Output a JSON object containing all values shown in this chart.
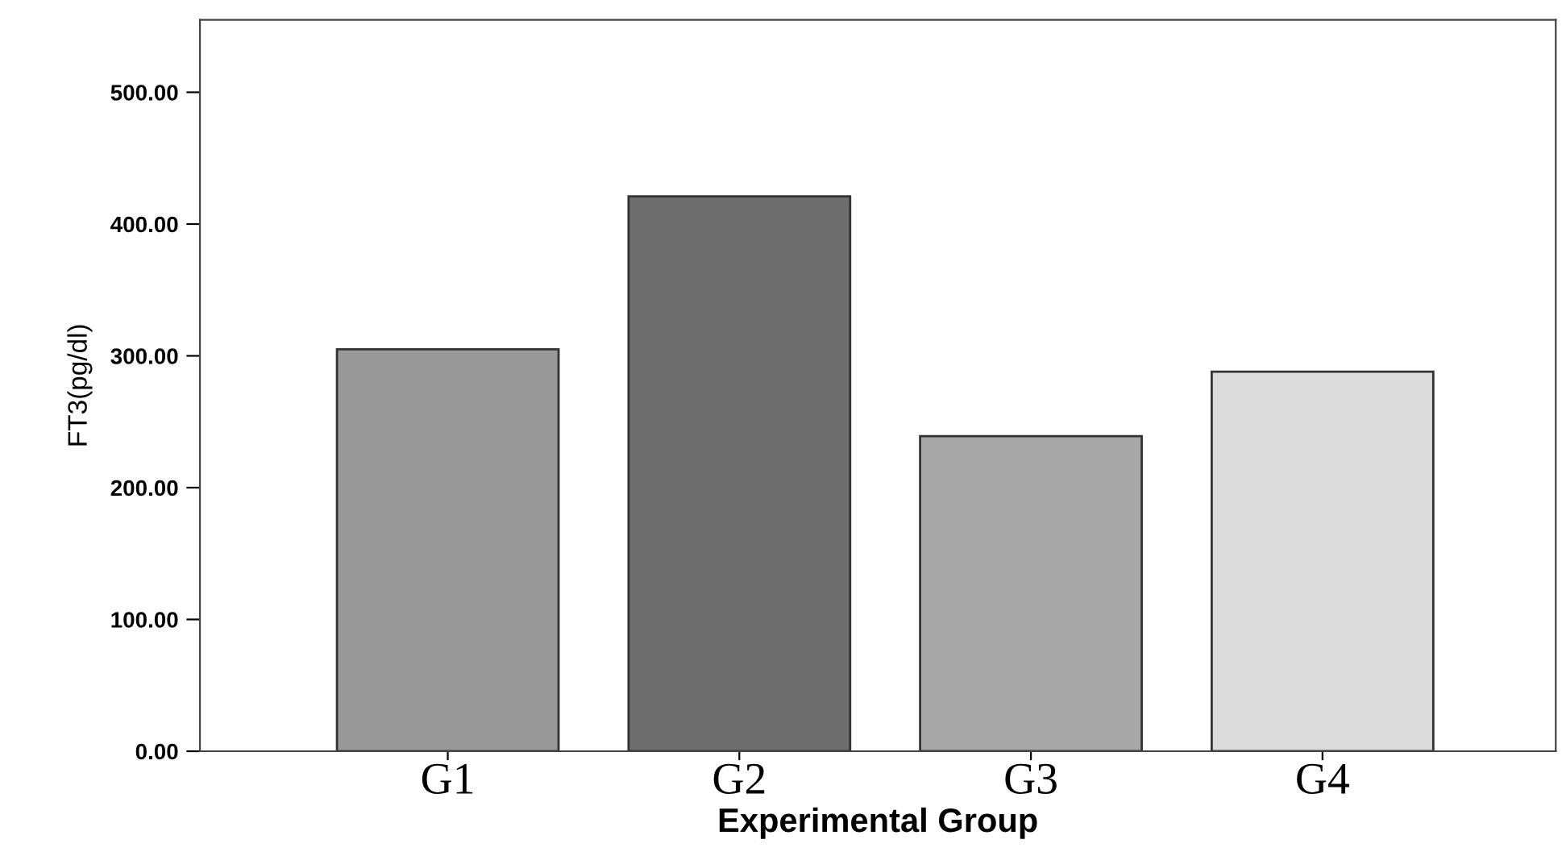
{
  "chart_data": {
    "type": "bar",
    "xlabel": "Experimental Group",
    "ylabel": "FT3(pg/dl)",
    "categories": [
      "G1",
      "G2",
      "G3",
      "G4"
    ],
    "values": [
      305,
      421,
      239,
      288
    ],
    "colors": [
      "#999999",
      "#6e6e6e",
      "#a8a8a8",
      "#dcdcdc"
    ],
    "ylim": [
      0,
      555
    ],
    "yticks": [
      {
        "value": 0,
        "label": "0.00"
      },
      {
        "value": 100,
        "label": "100.00"
      },
      {
        "value": 200,
        "label": "200.00"
      },
      {
        "value": 300,
        "label": "300.00"
      },
      {
        "value": 400,
        "label": "400.00"
      },
      {
        "value": 500,
        "label": "500.00"
      }
    ],
    "grid": false,
    "legend": false
  }
}
